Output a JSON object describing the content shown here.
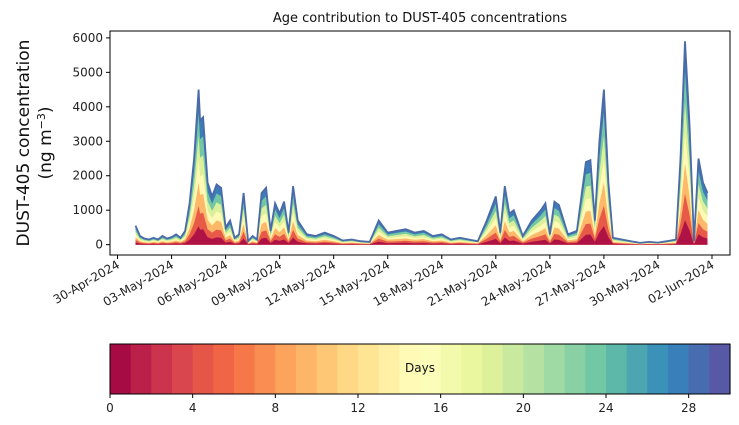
{
  "chart_data": {
    "type": "area",
    "title": "Age contribution to DUST-405 concentrations",
    "ylabel_line1": "DUST-405 concentration",
    "ylabel_line2": "(ng m",
    "ylabel_sup": "−3",
    "ylabel_close": ")",
    "xlabel": "",
    "ylim": [
      -300,
      6200
    ],
    "xlim": [
      "2024-04-29T14:00",
      "2024-06-03T00:00"
    ],
    "y_ticks": [
      0,
      1000,
      2000,
      3000,
      4000,
      5000,
      6000
    ],
    "x_ticks": [
      "30-Apr-2024",
      "03-May-2024",
      "06-May-2024",
      "09-May-2024",
      "12-May-2024",
      "15-May-2024",
      "18-May-2024",
      "21-May-2024",
      "24-May-2024",
      "27-May-2024",
      "30-May-2024",
      "02-Jun-2024"
    ],
    "x_tick_dates": [
      "2024-04-30",
      "2024-05-03",
      "2024-05-06",
      "2024-05-09",
      "2024-05-12",
      "2024-05-15",
      "2024-05-18",
      "2024-05-21",
      "2024-05-24",
      "2024-05-27",
      "2024-05-30",
      "2024-06-02"
    ],
    "grid": false,
    "line_color": "#4a6aa8",
    "series": [
      {
        "values": [
          [
            "2024-05-01T00:00",
            550
          ],
          [
            "2024-05-01T06:00",
            250
          ],
          [
            "2024-05-01T12:00",
            180
          ],
          [
            "2024-05-01T18:00",
            150
          ],
          [
            "2024-05-02T00:00",
            200
          ],
          [
            "2024-05-02T06:00",
            150
          ],
          [
            "2024-05-02T12:00",
            250
          ],
          [
            "2024-05-02T18:00",
            180
          ],
          [
            "2024-05-03T00:00",
            220
          ],
          [
            "2024-05-03T06:00",
            300
          ],
          [
            "2024-05-03T12:00",
            200
          ],
          [
            "2024-05-03T18:00",
            400
          ],
          [
            "2024-05-04T00:00",
            1200
          ],
          [
            "2024-05-04T06:00",
            2500
          ],
          [
            "2024-05-04T12:00",
            4500
          ],
          [
            "2024-05-04T14:00",
            3600
          ],
          [
            "2024-05-04T18:00",
            3700
          ],
          [
            "2024-05-05T00:00",
            1800
          ],
          [
            "2024-05-05T06:00",
            1400
          ],
          [
            "2024-05-05T12:00",
            1750
          ],
          [
            "2024-05-05T18:00",
            1650
          ],
          [
            "2024-05-06T00:00",
            500
          ],
          [
            "2024-05-06T06:00",
            700
          ],
          [
            "2024-05-06T12:00",
            200
          ],
          [
            "2024-05-06T18:00",
            300
          ],
          [
            "2024-05-07T00:00",
            1500
          ],
          [
            "2024-05-07T06:00",
            100
          ],
          [
            "2024-05-07T12:00",
            250
          ],
          [
            "2024-05-07T18:00",
            150
          ],
          [
            "2024-05-08T00:00",
            1500
          ],
          [
            "2024-05-08T06:00",
            1650
          ],
          [
            "2024-05-08T12:00",
            400
          ],
          [
            "2024-05-08T18:00",
            1200
          ],
          [
            "2024-05-09T00:00",
            900
          ],
          [
            "2024-05-09T06:00",
            1250
          ],
          [
            "2024-05-09T12:00",
            350
          ],
          [
            "2024-05-09T18:00",
            1700
          ],
          [
            "2024-05-10T00:00",
            700
          ],
          [
            "2024-05-10T06:00",
            500
          ],
          [
            "2024-05-10T12:00",
            300
          ],
          [
            "2024-05-11T00:00",
            250
          ],
          [
            "2024-05-11T12:00",
            350
          ],
          [
            "2024-05-12T00:00",
            250
          ],
          [
            "2024-05-12T12:00",
            120
          ],
          [
            "2024-05-13T00:00",
            150
          ],
          [
            "2024-05-13T12:00",
            100
          ],
          [
            "2024-05-14T00:00",
            80
          ],
          [
            "2024-05-14T12:00",
            700
          ],
          [
            "2024-05-15T00:00",
            350
          ],
          [
            "2024-05-15T12:00",
            400
          ],
          [
            "2024-05-16T00:00",
            450
          ],
          [
            "2024-05-16T12:00",
            350
          ],
          [
            "2024-05-17T00:00",
            400
          ],
          [
            "2024-05-17T12:00",
            250
          ],
          [
            "2024-05-18T00:00",
            300
          ],
          [
            "2024-05-18T12:00",
            150
          ],
          [
            "2024-05-19T00:00",
            200
          ],
          [
            "2024-05-19T12:00",
            150
          ],
          [
            "2024-05-20T00:00",
            100
          ],
          [
            "2024-05-20T12:00",
            700
          ],
          [
            "2024-05-21T00:00",
            1400
          ],
          [
            "2024-05-21T06:00",
            350
          ],
          [
            "2024-05-21T12:00",
            1700
          ],
          [
            "2024-05-21T18:00",
            900
          ],
          [
            "2024-05-22T00:00",
            1000
          ],
          [
            "2024-05-22T12:00",
            250
          ],
          [
            "2024-05-23T00:00",
            700
          ],
          [
            "2024-05-23T12:00",
            1000
          ],
          [
            "2024-05-23T18:00",
            1200
          ],
          [
            "2024-05-24T00:00",
            300
          ],
          [
            "2024-05-24T06:00",
            1250
          ],
          [
            "2024-05-24T12:00",
            1150
          ],
          [
            "2024-05-25T00:00",
            300
          ],
          [
            "2024-05-25T12:00",
            400
          ],
          [
            "2024-05-26T00:00",
            2400
          ],
          [
            "2024-05-26T06:00",
            2450
          ],
          [
            "2024-05-26T12:00",
            700
          ],
          [
            "2024-05-26T18:00",
            3000
          ],
          [
            "2024-05-27T00:00",
            4500
          ],
          [
            "2024-05-27T06:00",
            1800
          ],
          [
            "2024-05-27T12:00",
            200
          ],
          [
            "2024-05-28T00:00",
            150
          ],
          [
            "2024-05-28T12:00",
            100
          ],
          [
            "2024-05-29T00:00",
            50
          ],
          [
            "2024-05-29T12:00",
            80
          ],
          [
            "2024-05-30T00:00",
            60
          ],
          [
            "2024-05-30T12:00",
            100
          ],
          [
            "2024-05-31T00:00",
            150
          ],
          [
            "2024-05-31T06:00",
            2500
          ],
          [
            "2024-05-31T12:00",
            5900
          ],
          [
            "2024-05-31T18:00",
            3500
          ],
          [
            "2024-06-01T00:00",
            100
          ],
          [
            "2024-06-01T06:00",
            2500
          ],
          [
            "2024-06-01T12:00",
            1800
          ],
          [
            "2024-06-01T18:00",
            1500
          ]
        ]
      }
    ],
    "colorbar": {
      "label": "Days",
      "min": 0,
      "max": 30,
      "ticks": [
        0,
        4,
        8,
        12,
        16,
        20,
        24,
        28
      ],
      "colormap": "Spectral",
      "bands": 30
    }
  }
}
